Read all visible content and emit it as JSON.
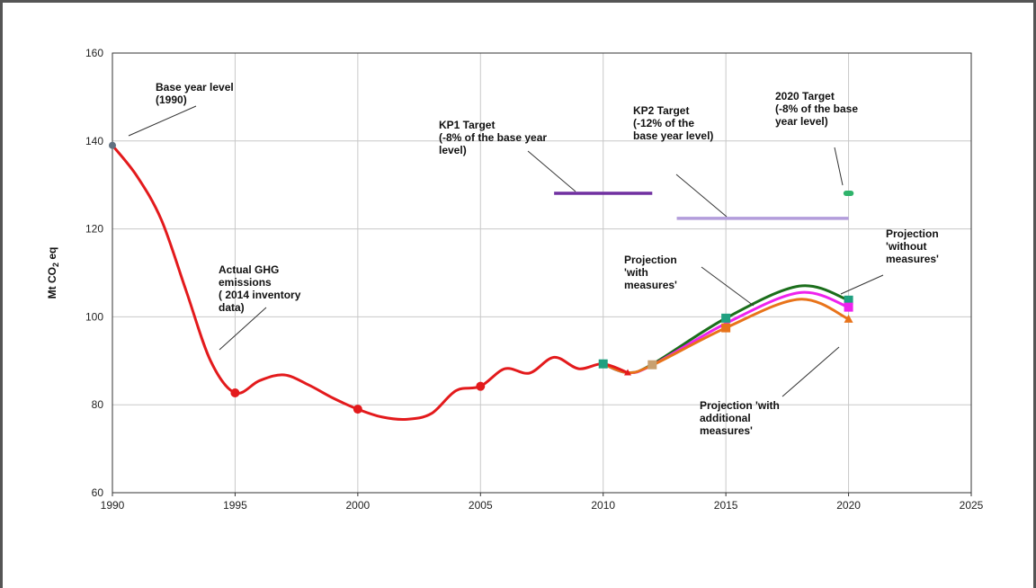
{
  "chart_data": {
    "type": "line",
    "title": "",
    "xlabel": "",
    "ylabel": "Mt CO2 eq",
    "xlim": [
      1990,
      2025
    ],
    "ylim": [
      60,
      160
    ],
    "x_ticks": [
      "1990",
      "1995",
      "2000",
      "2005",
      "2010",
      "2015",
      "2020",
      "2025"
    ],
    "y_ticks": [
      "60",
      "80",
      "100",
      "120",
      "140",
      "160"
    ],
    "grid": true,
    "colors": {
      "historical": "#e31a1c",
      "with_measures": "#ee22ee",
      "without_measures": "#1b6e1b",
      "with_additional_measures": "#e8731a",
      "kp1": "#7030a0",
      "kp2": "#b39ddb",
      "target_2020": "#2fb36b",
      "marker_square": "#20a080",
      "base_point": "#607080"
    },
    "series": [
      {
        "name": "Actual GHG emissions",
        "x": [
          1990,
          1991,
          1992,
          1993,
          1994,
          1995,
          1996,
          1997,
          1998,
          1999,
          2000,
          2001,
          2002,
          2003,
          2004,
          2005,
          2006,
          2007,
          2008,
          2009,
          2010,
          2011
        ],
        "y": [
          139,
          132,
          122,
          106,
          90,
          82.7,
          85.5,
          86.8,
          84.5,
          81.5,
          79.0,
          77.2,
          76.7,
          78.0,
          83.2,
          84.2,
          88.2,
          87.2,
          90.8,
          88.2,
          89.3,
          87.3
        ],
        "markers": [
          1990,
          1995,
          2000,
          2005
        ]
      },
      {
        "name": "Projection 'with measures'",
        "x": [
          2010,
          2011,
          2012,
          2015,
          2018,
          2020
        ],
        "y": [
          89.3,
          87.3,
          89.0,
          98.5,
          105.5,
          102.2
        ]
      },
      {
        "name": "Projection 'without measures'",
        "x": [
          2010,
          2011,
          2012,
          2015,
          2018,
          2020
        ],
        "y": [
          89.3,
          87.3,
          89.2,
          99.7,
          107.0,
          103.8
        ]
      },
      {
        "name": "Projection 'with additional measures'",
        "x": [
          2010,
          2011,
          2012,
          2015,
          2018,
          2020
        ],
        "y": [
          89.3,
          87.3,
          89.0,
          97.5,
          104.0,
          99.5
        ]
      }
    ],
    "targets": [
      {
        "name": "KP1 Target",
        "x": [
          2008,
          2012
        ],
        "y": 128.1
      },
      {
        "name": "KP2 Target",
        "x": [
          2013,
          2020
        ],
        "y": 122.4
      },
      {
        "name": "2020 Target",
        "x": [
          2019.9,
          2020.1
        ],
        "y": 128.1
      }
    ],
    "annotations": {
      "base_year": [
        "Base year level",
        "(1990)"
      ],
      "actual": [
        "Actual GHG",
        "emissions",
        "( 2014  inventory",
        "data)"
      ],
      "kp1": [
        "KP1 Target",
        "(-8%  of the base year",
        "level)"
      ],
      "kp2": [
        "KP2 Target",
        "(-12%  of the",
        "base year level)"
      ],
      "target2020": [
        "2020 Target",
        "(-8%  of the base",
        "year level)"
      ],
      "with_measures": [
        "Projection",
        "'with",
        "measures'"
      ],
      "without_measures": [
        "Projection",
        "'without",
        "measures'"
      ],
      "additional": [
        "Projection 'with",
        "additional",
        "measures'"
      ]
    }
  }
}
